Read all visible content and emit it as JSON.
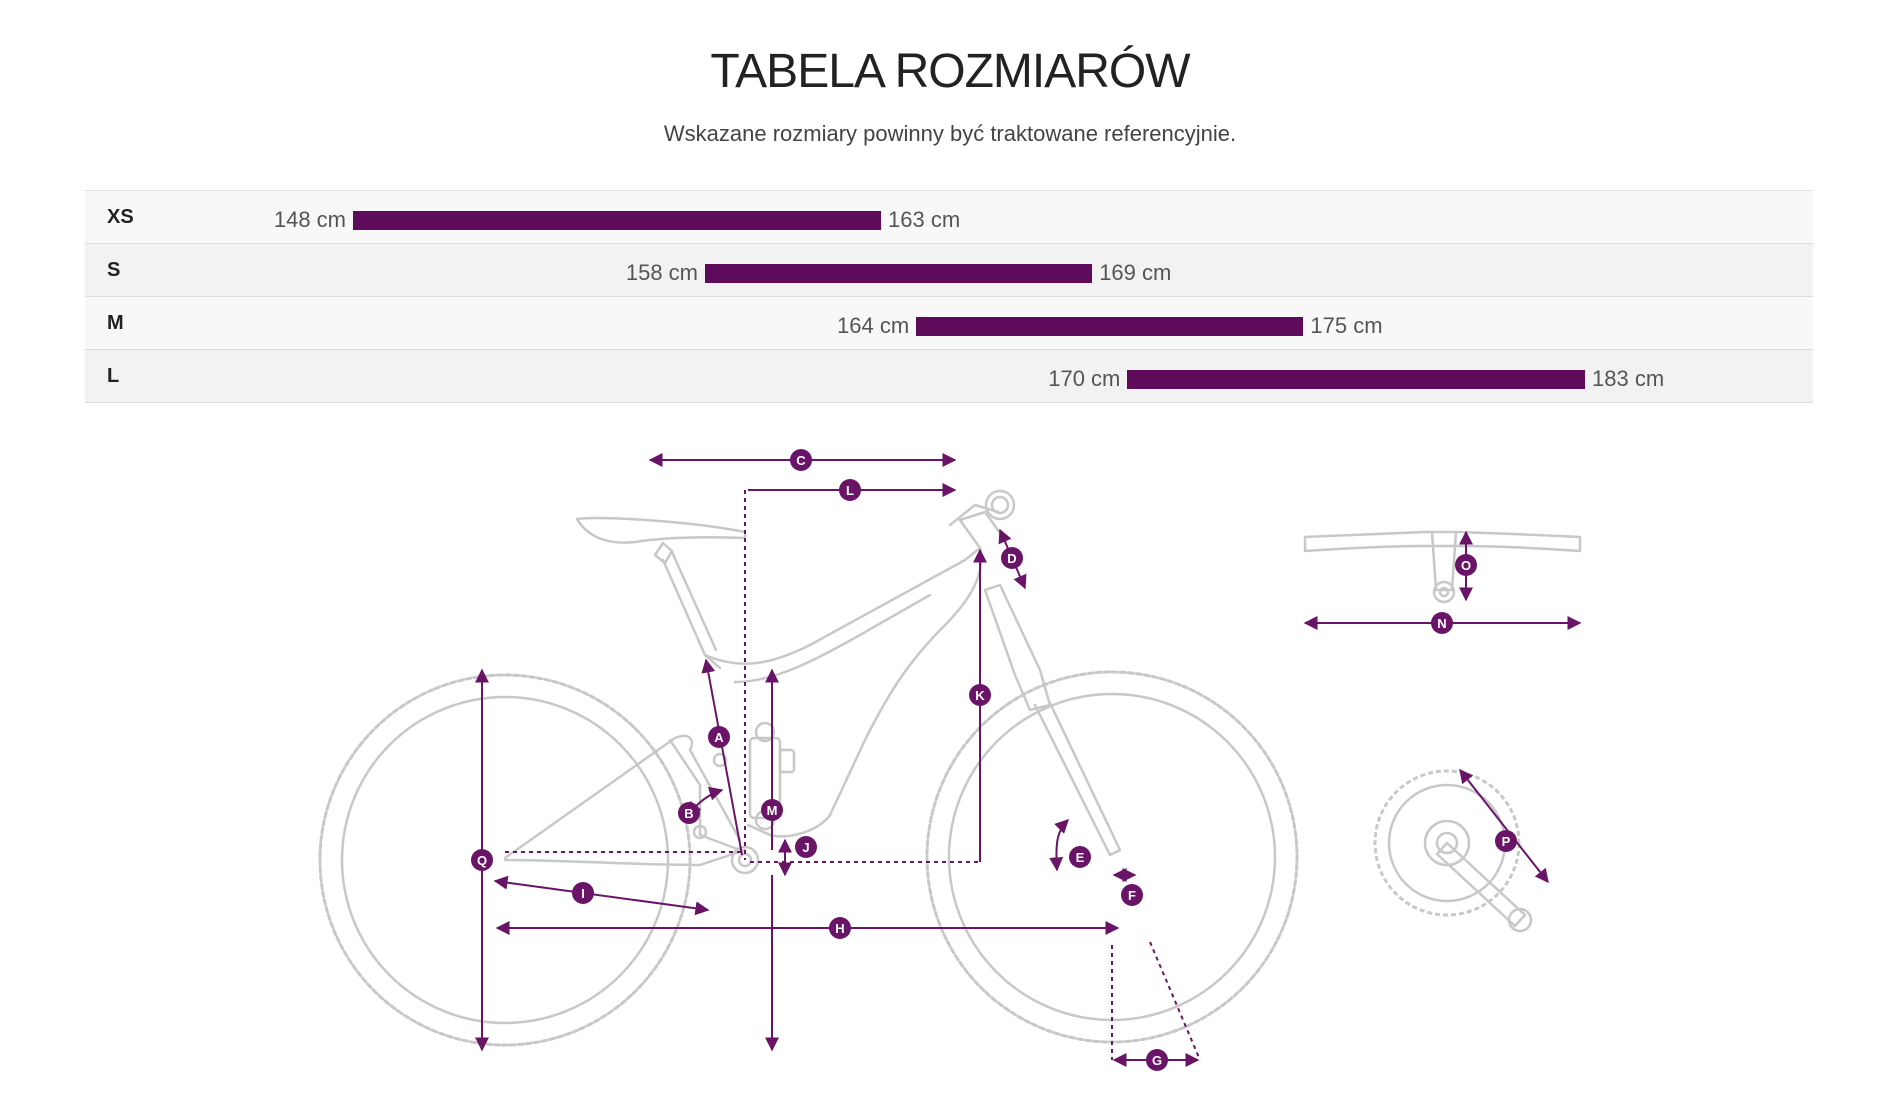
{
  "header": {
    "title": "TABELA ROZMIARÓW",
    "subtitle": "Wskazane rozmiary powinny być traktowane referencyjnie."
  },
  "size_table": {
    "bar_color": "#5e0b5b",
    "scale_cm": [
      148,
      183
    ],
    "rows": [
      {
        "size": "XS",
        "min_cm": 148,
        "max_cm": 163,
        "min_label": "148 cm",
        "max_label": "163 cm"
      },
      {
        "size": "S",
        "min_cm": 158,
        "max_cm": 169,
        "min_label": "158 cm",
        "max_label": "169 cm"
      },
      {
        "size": "M",
        "min_cm": 164,
        "max_cm": 175,
        "min_label": "164 cm",
        "max_label": "175 cm"
      },
      {
        "size": "L",
        "min_cm": 170,
        "max_cm": 183,
        "min_label": "170 cm",
        "max_label": "183 cm"
      }
    ]
  },
  "geometry_diagram": {
    "accent_color": "#6a1468",
    "line_color": "#c8c8c8",
    "labels": [
      "A",
      "B",
      "C",
      "D",
      "E",
      "F",
      "G",
      "H",
      "I",
      "J",
      "K",
      "L",
      "M",
      "N",
      "O",
      "P",
      "Q"
    ]
  }
}
